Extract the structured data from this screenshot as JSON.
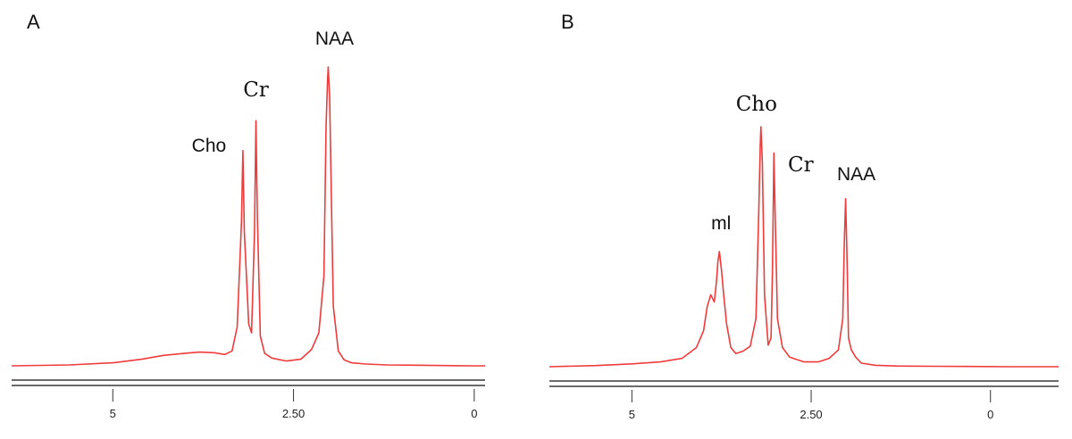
{
  "colors": {
    "spectrum": "#ef3b3b",
    "baseline": "#6a6a6a",
    "text": "#111111"
  },
  "chart_data": [
    {
      "type": "line",
      "panel_label": "A",
      "xlabel": "",
      "ylabel": "",
      "x_axis_direction": "reversed",
      "xlim": [
        6.4,
        -0.15
      ],
      "ylim": [
        0,
        100
      ],
      "tick_values": [
        5,
        2.5,
        0
      ],
      "tick_labels": [
        "5",
        "2.50",
        "0"
      ],
      "peaks": [
        {
          "label": "Cho",
          "x": 3.2,
          "height": 72
        },
        {
          "label": "Cr",
          "x": 3.02,
          "height": 82
        },
        {
          "label": "NAA",
          "x": 2.02,
          "height": 100
        }
      ],
      "series": [
        {
          "x": [
            6.4,
            5.6,
            5.0,
            4.6,
            4.3,
            4.0,
            3.8,
            3.6,
            3.45,
            3.35,
            3.28,
            3.22,
            3.2,
            3.18,
            3.12,
            3.08,
            3.04,
            3.02,
            3.0,
            2.96,
            2.9,
            2.8,
            2.6,
            2.4,
            2.25,
            2.15,
            2.08,
            2.05,
            2.03,
            2.02,
            2.0,
            1.98,
            1.95,
            1.88,
            1.8,
            1.7,
            1.5,
            1.2,
            0.8,
            0.4,
            0.0,
            -0.15
          ],
          "y": [
            0,
            0.3,
            1.0,
            2.2,
            3.5,
            4.2,
            4.6,
            4.4,
            3.8,
            5.0,
            13,
            48,
            72,
            45,
            14,
            11,
            45,
            82,
            50,
            10,
            4.2,
            2.6,
            1.6,
            2.2,
            5.5,
            11,
            30,
            80,
            95,
            100,
            90,
            62,
            20,
            5.0,
            2.0,
            1.0,
            0.6,
            0.3,
            0.2,
            0.1,
            0,
            0
          ]
        }
      ]
    },
    {
      "type": "line",
      "panel_label": "B",
      "xlabel": "",
      "ylabel": "",
      "x_axis_direction": "reversed",
      "xlim": [
        6.15,
        -0.95
      ],
      "ylim": [
        0,
        100
      ],
      "tick_values": [
        5,
        2.5,
        0
      ],
      "tick_labels": [
        "5",
        "2.50",
        "0"
      ],
      "peaks": [
        {
          "label": "ml",
          "x": 3.78,
          "height": 48
        },
        {
          "label": "Cho",
          "x": 3.2,
          "height": 100
        },
        {
          "label": "Cr",
          "x": 3.02,
          "height": 89
        },
        {
          "label": "NAA",
          "x": 2.02,
          "height": 70
        }
      ],
      "series": [
        {
          "x": [
            6.15,
            5.5,
            5.0,
            4.6,
            4.3,
            4.1,
            4.0,
            3.95,
            3.9,
            3.85,
            3.82,
            3.8,
            3.78,
            3.75,
            3.72,
            3.68,
            3.62,
            3.55,
            3.45,
            3.35,
            3.27,
            3.23,
            3.21,
            3.2,
            3.18,
            3.15,
            3.1,
            3.06,
            3.04,
            3.02,
            3.0,
            2.97,
            2.9,
            2.8,
            2.6,
            2.4,
            2.25,
            2.12,
            2.06,
            2.04,
            2.02,
            2.0,
            1.98,
            1.94,
            1.88,
            1.8,
            1.6,
            1.3,
            0.8,
            0.3,
            -0.3,
            -0.95
          ],
          "y": [
            0,
            0.5,
            1.2,
            2.0,
            3.5,
            8.0,
            15,
            25,
            30,
            27,
            36,
            44,
            48,
            40,
            30,
            18,
            8.0,
            5.5,
            6.5,
            8.5,
            20,
            65,
            92,
            100,
            85,
            30,
            9.0,
            12,
            40,
            89,
            60,
            20,
            8.0,
            4.0,
            2.0,
            2.0,
            3.5,
            7.0,
            20,
            50,
            70,
            45,
            12,
            7.0,
            4.0,
            1.5,
            0.6,
            0.3,
            0.2,
            0.1,
            0,
            0
          ]
        }
      ]
    }
  ]
}
